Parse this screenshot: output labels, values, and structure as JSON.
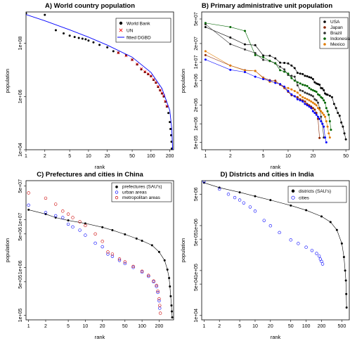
{
  "chart_data": [
    {
      "type": "scatter",
      "title": "A)  World country population",
      "xlabel": "rank",
      "ylabel": "population",
      "xscale": "log",
      "yscale": "log",
      "xlim": [
        1,
        230
      ],
      "ylim": [
        10000,
        1500000000
      ],
      "x_ticks": [
        1,
        2,
        5,
        10,
        20,
        50,
        100,
        200
      ],
      "x_tick_labels": [
        "1",
        "2",
        "5",
        "10",
        "20",
        "50",
        "100",
        "200"
      ],
      "y_ticks": [
        10000,
        1000000,
        100000000
      ],
      "y_tick_labels": [
        "1e+04",
        "1e+06",
        "1e+08"
      ],
      "legend_position": "top-right",
      "series": [
        {
          "name": "World Bank",
          "marker": "dot",
          "color": "#000000",
          "x": [
            1,
            2,
            3,
            4,
            5,
            6,
            7,
            8,
            9,
            10,
            12,
            15,
            20,
            25,
            30,
            40,
            50,
            60,
            70,
            80,
            90,
            100,
            110,
            120,
            130,
            140,
            150,
            160,
            170,
            180,
            190,
            200,
            205,
            210,
            213,
            215
          ],
          "y": [
            1330000000,
            1170000000,
            308000000,
            234000000,
            193000000,
            172000000,
            158000000,
            149000000,
            141000000,
            126000000,
            108000000,
            87000000,
            70000000,
            50000000,
            44000000,
            35000000,
            24000000,
            16000000,
            10500000,
            8300000,
            6900000,
            5800000,
            4200000,
            3300000,
            2300000,
            1700000,
            1300000,
            1000000,
            640000,
            420000,
            240000,
            110000,
            60000,
            35000,
            20000,
            11000
          ]
        },
        {
          "name": "UN",
          "marker": "cross",
          "color": "#ff0000",
          "x": [
            30,
            40,
            50,
            60,
            70,
            80,
            90,
            100,
            110,
            120,
            130,
            140,
            150,
            160,
            170,
            180
          ],
          "y": [
            44000000,
            34000000,
            24000000,
            16500000,
            11000000,
            8600000,
            7100000,
            5900000,
            4400000,
            3400000,
            2400000,
            1750000,
            1350000,
            1050000,
            660000,
            440000
          ]
        },
        {
          "name": "fitted DGBD",
          "marker": "line",
          "color": "#0000ff",
          "x": [
            1,
            2,
            5,
            10,
            20,
            50,
            100,
            150,
            200,
            215,
            222
          ],
          "y": [
            1200000000,
            700000000,
            320000000,
            170000000,
            85000000,
            30000000,
            8000000,
            2000000,
            300000,
            60000,
            10000
          ]
        }
      ]
    },
    {
      "type": "scatter",
      "title": "B)  Primary administrative unit population",
      "xlabel": "rank",
      "ylabel": "population",
      "xscale": "log",
      "yscale": "log",
      "xlim": [
        0.9,
        55
      ],
      "ylim": [
        380000,
        65000000
      ],
      "x_ticks": [
        1,
        2,
        5,
        10,
        20,
        50
      ],
      "x_tick_labels": [
        "1",
        "2",
        "5",
        "10",
        "20",
        "50"
      ],
      "y_ticks": [
        500000,
        1000000,
        2000000,
        5000000,
        10000000,
        20000000,
        50000000
      ],
      "y_tick_labels": [
        "5e+05",
        "1e+06",
        "2e+06",
        "5e+06",
        "1e+07",
        "2e+07",
        "5e+07"
      ],
      "legend_position": "top-right",
      "series": [
        {
          "name": "USA",
          "color": "#000000",
          "x": [
            1,
            2,
            3,
            4,
            5,
            6,
            7,
            8,
            9,
            10,
            11,
            12,
            13,
            14,
            15,
            16,
            17,
            18,
            19,
            20,
            21,
            22,
            23,
            24,
            25,
            26,
            27,
            28,
            29,
            30,
            32,
            34,
            36,
            38,
            40,
            42,
            44,
            46,
            48,
            50
          ],
          "y": [
            37000000,
            25000000,
            19400000,
            18800000,
            12800000,
            12700000,
            11500000,
            9800000,
            9700000,
            9500000,
            8800000,
            8000000,
            6700000,
            6500000,
            6400000,
            6000000,
            5900000,
            5700000,
            5600000,
            5300000,
            4700000,
            4500000,
            4400000,
            4300000,
            3800000,
            3750000,
            3500000,
            3100000,
            3000000,
            2960000,
            2850000,
            2700000,
            2100000,
            1800000,
            1500000,
            1350000,
            1050000,
            900000,
            700000,
            560000
          ]
        },
        {
          "name": "Japan",
          "color": "#8b2500",
          "x": [
            1,
            2,
            3,
            4,
            5,
            6,
            7,
            8,
            9,
            10,
            11,
            12,
            13,
            14,
            15,
            16,
            17,
            18,
            19,
            20,
            21,
            22,
            23,
            24
          ],
          "y": [
            13000000,
            8800000,
            7400000,
            7200000,
            5600000,
            5100000,
            5000000,
            4300000,
            3800000,
            3300000,
            2900000,
            2800000,
            2700000,
            2500000,
            2400000,
            2300000,
            2100000,
            2000000,
            1900000,
            1800000,
            1700000,
            1500000,
            1200000,
            590000
          ]
        },
        {
          "name": "Brazil",
          "color": "#2e2e2e",
          "x": [
            1,
            2,
            3,
            4,
            5,
            6,
            7,
            8,
            9,
            10,
            11,
            12,
            13,
            14,
            15,
            16,
            17,
            18,
            19,
            20,
            21,
            22,
            23,
            24,
            25,
            26,
            27
          ],
          "y": [
            41000000,
            19600000,
            16000000,
            14000000,
            10900000,
            10400000,
            9500000,
            8400000,
            7600000,
            6200000,
            6000000,
            5800000,
            4200000,
            3500000,
            3400000,
            3200000,
            3100000,
            3000000,
            2900000,
            2800000,
            2500000,
            2400000,
            2200000,
            1800000,
            1300000,
            1000000,
            600000
          ]
        },
        {
          "name": "Indonesia",
          "color": "#006400",
          "x": [
            1,
            2,
            3,
            4,
            5,
            6,
            7,
            8,
            9,
            10,
            11,
            12,
            13,
            14,
            15,
            16,
            17,
            18,
            19,
            20,
            21,
            22,
            23,
            24,
            25,
            26,
            27,
            28,
            29,
            30,
            31,
            32,
            33
          ],
          "y": [
            43000000,
            37000000,
            32000000,
            13000000,
            12000000,
            10500000,
            9600000,
            7400000,
            7000000,
            6500000,
            5500000,
            5000000,
            4700000,
            4500000,
            4300000,
            4200000,
            4100000,
            3800000,
            3600000,
            3500000,
            3400000,
            3300000,
            3000000,
            2900000,
            2700000,
            2600000,
            2400000,
            2200000,
            1800000,
            1600000,
            1400000,
            1100000,
            800000
          ]
        },
        {
          "name": "Mexico",
          "color": "#e07b00",
          "x": [
            1,
            2,
            3,
            4,
            5,
            6,
            7,
            8,
            9,
            10,
            11,
            12,
            13,
            14,
            15,
            16,
            17,
            18,
            19,
            20,
            21,
            22,
            23,
            24,
            25,
            26,
            27,
            28,
            29,
            30,
            31,
            32
          ],
          "y": [
            15000000,
            8800000,
            7300000,
            7200000,
            5500000,
            4800000,
            4700000,
            4400000,
            3900000,
            3800000,
            3600000,
            3400000,
            3200000,
            2900000,
            2700000,
            2600000,
            2500000,
            2400000,
            2300000,
            2200000,
            2100000,
            2000000,
            1800000,
            1700000,
            1600000,
            1500000,
            1400000,
            1300000,
            1100000,
            900000,
            700000,
            600000
          ]
        },
        {
          "name": "",
          "color": "#0000ff",
          "x": [
            1,
            2,
            3,
            4,
            5,
            6,
            7,
            8,
            9,
            10,
            11,
            12,
            13,
            14,
            15,
            16,
            17,
            18,
            19,
            20,
            21,
            22,
            23,
            24,
            25,
            26,
            27,
            28,
            29
          ],
          "y": [
            11000000,
            7500000,
            6900000,
            5800000,
            5300000,
            5000000,
            4600000,
            4400000,
            4000000,
            3400000,
            3000000,
            2800000,
            2500000,
            2400000,
            2300000,
            2100000,
            2000000,
            1900000,
            1800000,
            1600000,
            1500000,
            1400000,
            1300000,
            1200000,
            1100000,
            1000000,
            900000,
            600000,
            500000
          ]
        }
      ]
    },
    {
      "type": "scatter",
      "title": "C)  Prefectures and cities in China",
      "xlabel": "rank",
      "ylabel": "population",
      "xscale": "log",
      "yscale": "log",
      "xlim": [
        0.9,
        360
      ],
      "ylim": [
        80000,
        65000000
      ],
      "x_ticks": [
        1,
        2,
        5,
        10,
        20,
        50,
        100,
        200
      ],
      "x_tick_labels": [
        "1",
        "2",
        "5",
        "10",
        "20",
        "50",
        "100",
        "200"
      ],
      "y_ticks": [
        100000,
        500000,
        1000000,
        5000000,
        10000000,
        50000000
      ],
      "y_tick_labels": [
        "1e+05",
        "5e+05",
        "1e+06",
        "5e+06",
        "1e+07",
        "5e+07"
      ],
      "legend_position": "top-right",
      "series": [
        {
          "name": "prefectures (SAU's)",
          "marker": "dot",
          "color": "#000000",
          "x": [
            1,
            2,
            3,
            5,
            10,
            20,
            30,
            50,
            80,
            100,
            150,
            200,
            250,
            280,
            300,
            310,
            320,
            330,
            335,
            340
          ],
          "y": [
            16000000,
            13000000,
            11000000,
            9600000,
            8300000,
            6900000,
            6000000,
            4900000,
            4000000,
            3600000,
            2900000,
            2100000,
            1400000,
            900000,
            600000,
            400000,
            250000,
            160000,
            120000,
            90000
          ]
        },
        {
          "name": "urban areas",
          "marker": "circle",
          "color": "#0000ff",
          "x": [
            1,
            2,
            3,
            4,
            5,
            6,
            8,
            10,
            15,
            20,
            25,
            30,
            40,
            50,
            70,
            100,
            130,
            160,
            180,
            190,
            200,
            205
          ],
          "y": [
            20000000,
            14000000,
            12000000,
            11000000,
            8000000,
            7000000,
            6000000,
            4700000,
            3200000,
            2700000,
            1900000,
            1700000,
            1400000,
            1200000,
            1000000,
            800000,
            650000,
            500000,
            400000,
            300000,
            200000,
            140000
          ]
        },
        {
          "name": "metropolitan areas",
          "marker": "circle",
          "color": "#cc0000",
          "x": [
            1,
            2,
            3,
            4,
            5,
            6,
            8,
            10,
            15,
            20,
            25,
            30,
            40,
            50,
            70,
            100,
            130,
            160,
            180,
            190,
            200,
            205,
            210
          ],
          "y": [
            36000000,
            28000000,
            21000000,
            15000000,
            13000000,
            11000000,
            9000000,
            7500000,
            5000000,
            3500000,
            2100000,
            1900000,
            1500000,
            1300000,
            1050000,
            830000,
            680000,
            520000,
            420000,
            320000,
            220000,
            160000,
            110000
          ]
        }
      ]
    },
    {
      "type": "scatter",
      "title": "D)  Districts and cities in India",
      "xlabel": "rank",
      "ylabel": "population",
      "xscale": "log",
      "yscale": "log",
      "xlim": [
        0.9,
        700
      ],
      "ylim": [
        8000,
        10000000
      ],
      "x_ticks": [
        1,
        2,
        5,
        10,
        20,
        50,
        100,
        200,
        500
      ],
      "x_tick_labels": [
        "1",
        "2",
        "5",
        "10",
        "20",
        "50",
        "100",
        "200",
        "500"
      ],
      "y_ticks": [
        10000,
        50000,
        100000,
        500000,
        1000000,
        5000000
      ],
      "y_tick_labels": [
        "1e+04",
        "5e+04",
        "1e+05",
        "5e+05",
        "1e+06",
        "5e+06"
      ],
      "legend_position": "top-right",
      "series": [
        {
          "name": "districts (SAU's)",
          "marker": "dot",
          "color": "#000000",
          "x": [
            1,
            2,
            5,
            10,
            20,
            50,
            100,
            200,
            300,
            400,
            500,
            550,
            580,
            600,
            610,
            620
          ],
          "y": [
            9000000,
            7000000,
            5500000,
            4500000,
            3700000,
            2800000,
            2200000,
            1600000,
            1200000,
            800000,
            400000,
            200000,
            100000,
            60000,
            30000,
            15000
          ]
        },
        {
          "name": "cities",
          "marker": "circle",
          "color": "#0000ff",
          "x": [
            1,
            2,
            3,
            4,
            5,
            6,
            8,
            10,
            15,
            20,
            30,
            50,
            70,
            100,
            130,
            160,
            180,
            190,
            200,
            210
          ],
          "y": [
            9600000,
            6500000,
            5000000,
            4200000,
            3700000,
            3200000,
            2600000,
            2100000,
            1300000,
            990000,
            700000,
            480000,
            400000,
            330000,
            280000,
            240000,
            210000,
            180000,
            160000,
            140000
          ]
        }
      ]
    }
  ]
}
